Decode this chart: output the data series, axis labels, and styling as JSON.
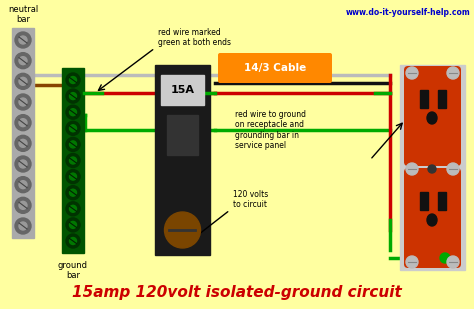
{
  "bg_color": "#FFFFA0",
  "title": "15amp 120volt isolated-ground circuit",
  "title_color": "#CC0000",
  "title_fontsize": 11,
  "website": "www.do-it-yourself-help.com",
  "website_color": "#0000CC",
  "labels": {
    "neutral_bar": "neutral\nbar",
    "ground_bar": "ground\nbar",
    "cable": "14/3 Cable",
    "red_wire_note": "red wire marked\ngreen at both ends",
    "red_to_ground": "red wire to ground\non receptacle and\ngrounding bar in\nservice panel",
    "volts": "120 volts\nto circuit"
  },
  "colors": {
    "neutral_bar_bg": "#AAAAAA",
    "neutral_bar_fg": "#888888",
    "ground_bar_bg": "#005500",
    "ground_bar_fg": "#00AA00",
    "wire_black": "#111111",
    "wire_white": "#BBBBBB",
    "wire_red": "#CC0000",
    "wire_green": "#00AA00",
    "wire_brown": "#884400",
    "breaker_body": "#1a1a1a",
    "breaker_label_bg": "#CCCCCC",
    "cable_label_bg": "#FF8800",
    "cable_label_text": "#FFFFFF",
    "outlet_body": "#CC3300",
    "outlet_screw": "#BBBBBB",
    "outlet_slot": "#111111",
    "outlet_tab": "#AAAAAA"
  }
}
